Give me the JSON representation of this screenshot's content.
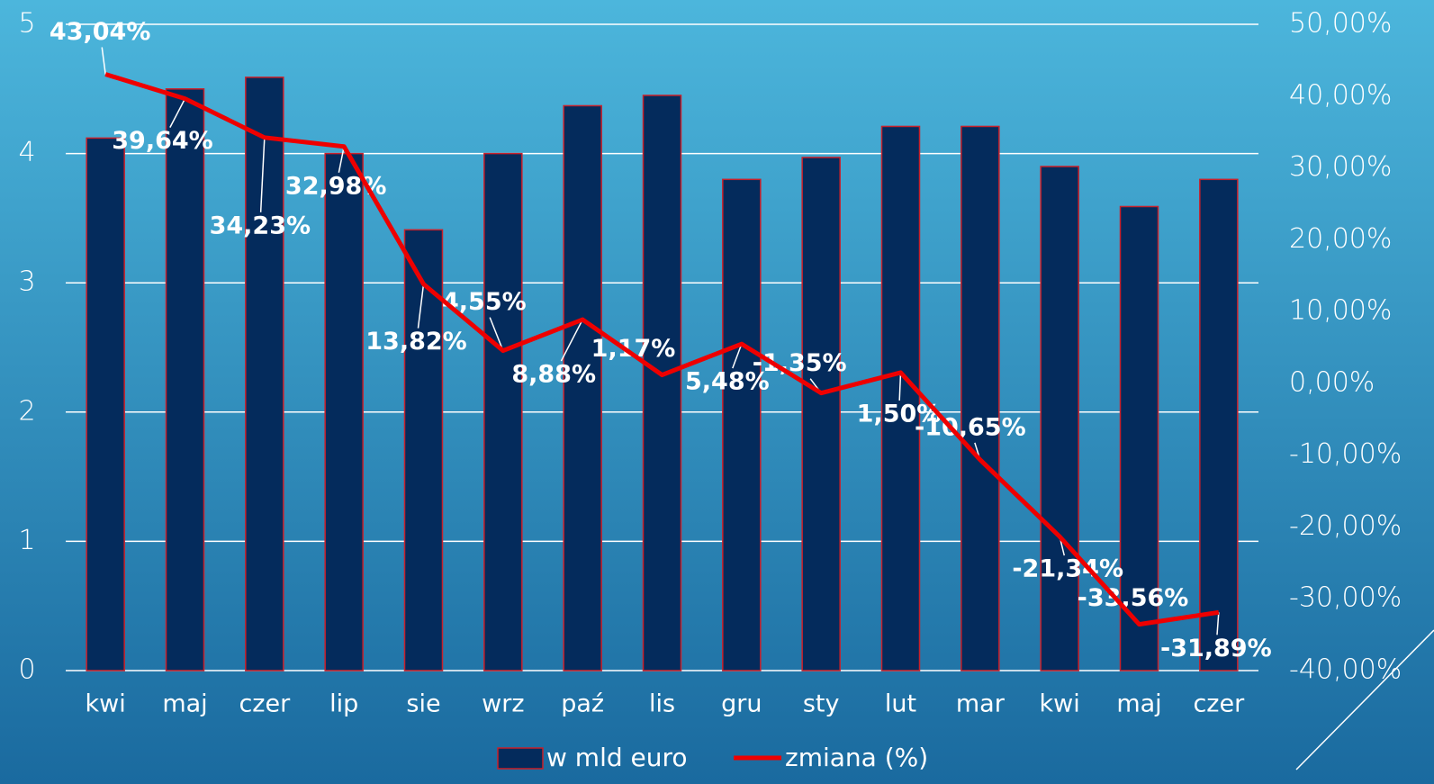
{
  "chart_data": {
    "type": "bar-line",
    "categories": [
      "kwi",
      "maj",
      "czer",
      "lip",
      "sie",
      "wrz",
      "paź",
      "lis",
      "gru",
      "sty",
      "lut",
      "mar",
      "kwi",
      "maj",
      "czer"
    ],
    "series": [
      {
        "name": "w mld euro",
        "type": "bar",
        "color": "#042b5c",
        "axis": "y",
        "values": [
          4.12,
          4.5,
          4.59,
          4.0,
          3.41,
          4.0,
          4.37,
          4.45,
          3.8,
          3.97,
          4.21,
          4.21,
          3.9,
          3.59,
          3.8
        ]
      },
      {
        "name": "zmiana (%)",
        "type": "line",
        "color": "#ee0000",
        "axis": "y2",
        "values": [
          43.04,
          39.64,
          34.23,
          32.98,
          13.82,
          4.55,
          8.88,
          1.17,
          5.48,
          -1.35,
          1.5,
          -10.65,
          -21.34,
          -33.56,
          -31.89
        ],
        "value_labels": [
          "43,04%",
          "39,64%",
          "34,23%",
          "32,98%",
          "13,82%",
          "4,55%",
          "8,88%",
          "1,17%",
          "5,48%",
          "-1,35%",
          "1,50%",
          "-10,65%",
          "-21,34%",
          "-33,56%",
          "-31,89%"
        ]
      }
    ],
    "ylim": [
      0,
      5
    ],
    "yticks": [
      0,
      1,
      2,
      3,
      4,
      5
    ],
    "y2lim": [
      -40,
      50
    ],
    "y2ticks": [
      {
        "value": -40,
        "label": "-40,00%"
      },
      {
        "value": -30,
        "label": "-30,00%"
      },
      {
        "value": -20,
        "label": "-20,00%"
      },
      {
        "value": -10,
        "label": "-10,00%"
      },
      {
        "value": 0,
        "label": "0,00%"
      },
      {
        "value": 10,
        "label": "10,00%"
      },
      {
        "value": 20,
        "label": "20,00%"
      },
      {
        "value": 30,
        "label": "30,00%"
      },
      {
        "value": 40,
        "label": "40,00%"
      },
      {
        "value": 50,
        "label": "50,00%"
      }
    ],
    "grid": true,
    "legend": "bottom"
  }
}
